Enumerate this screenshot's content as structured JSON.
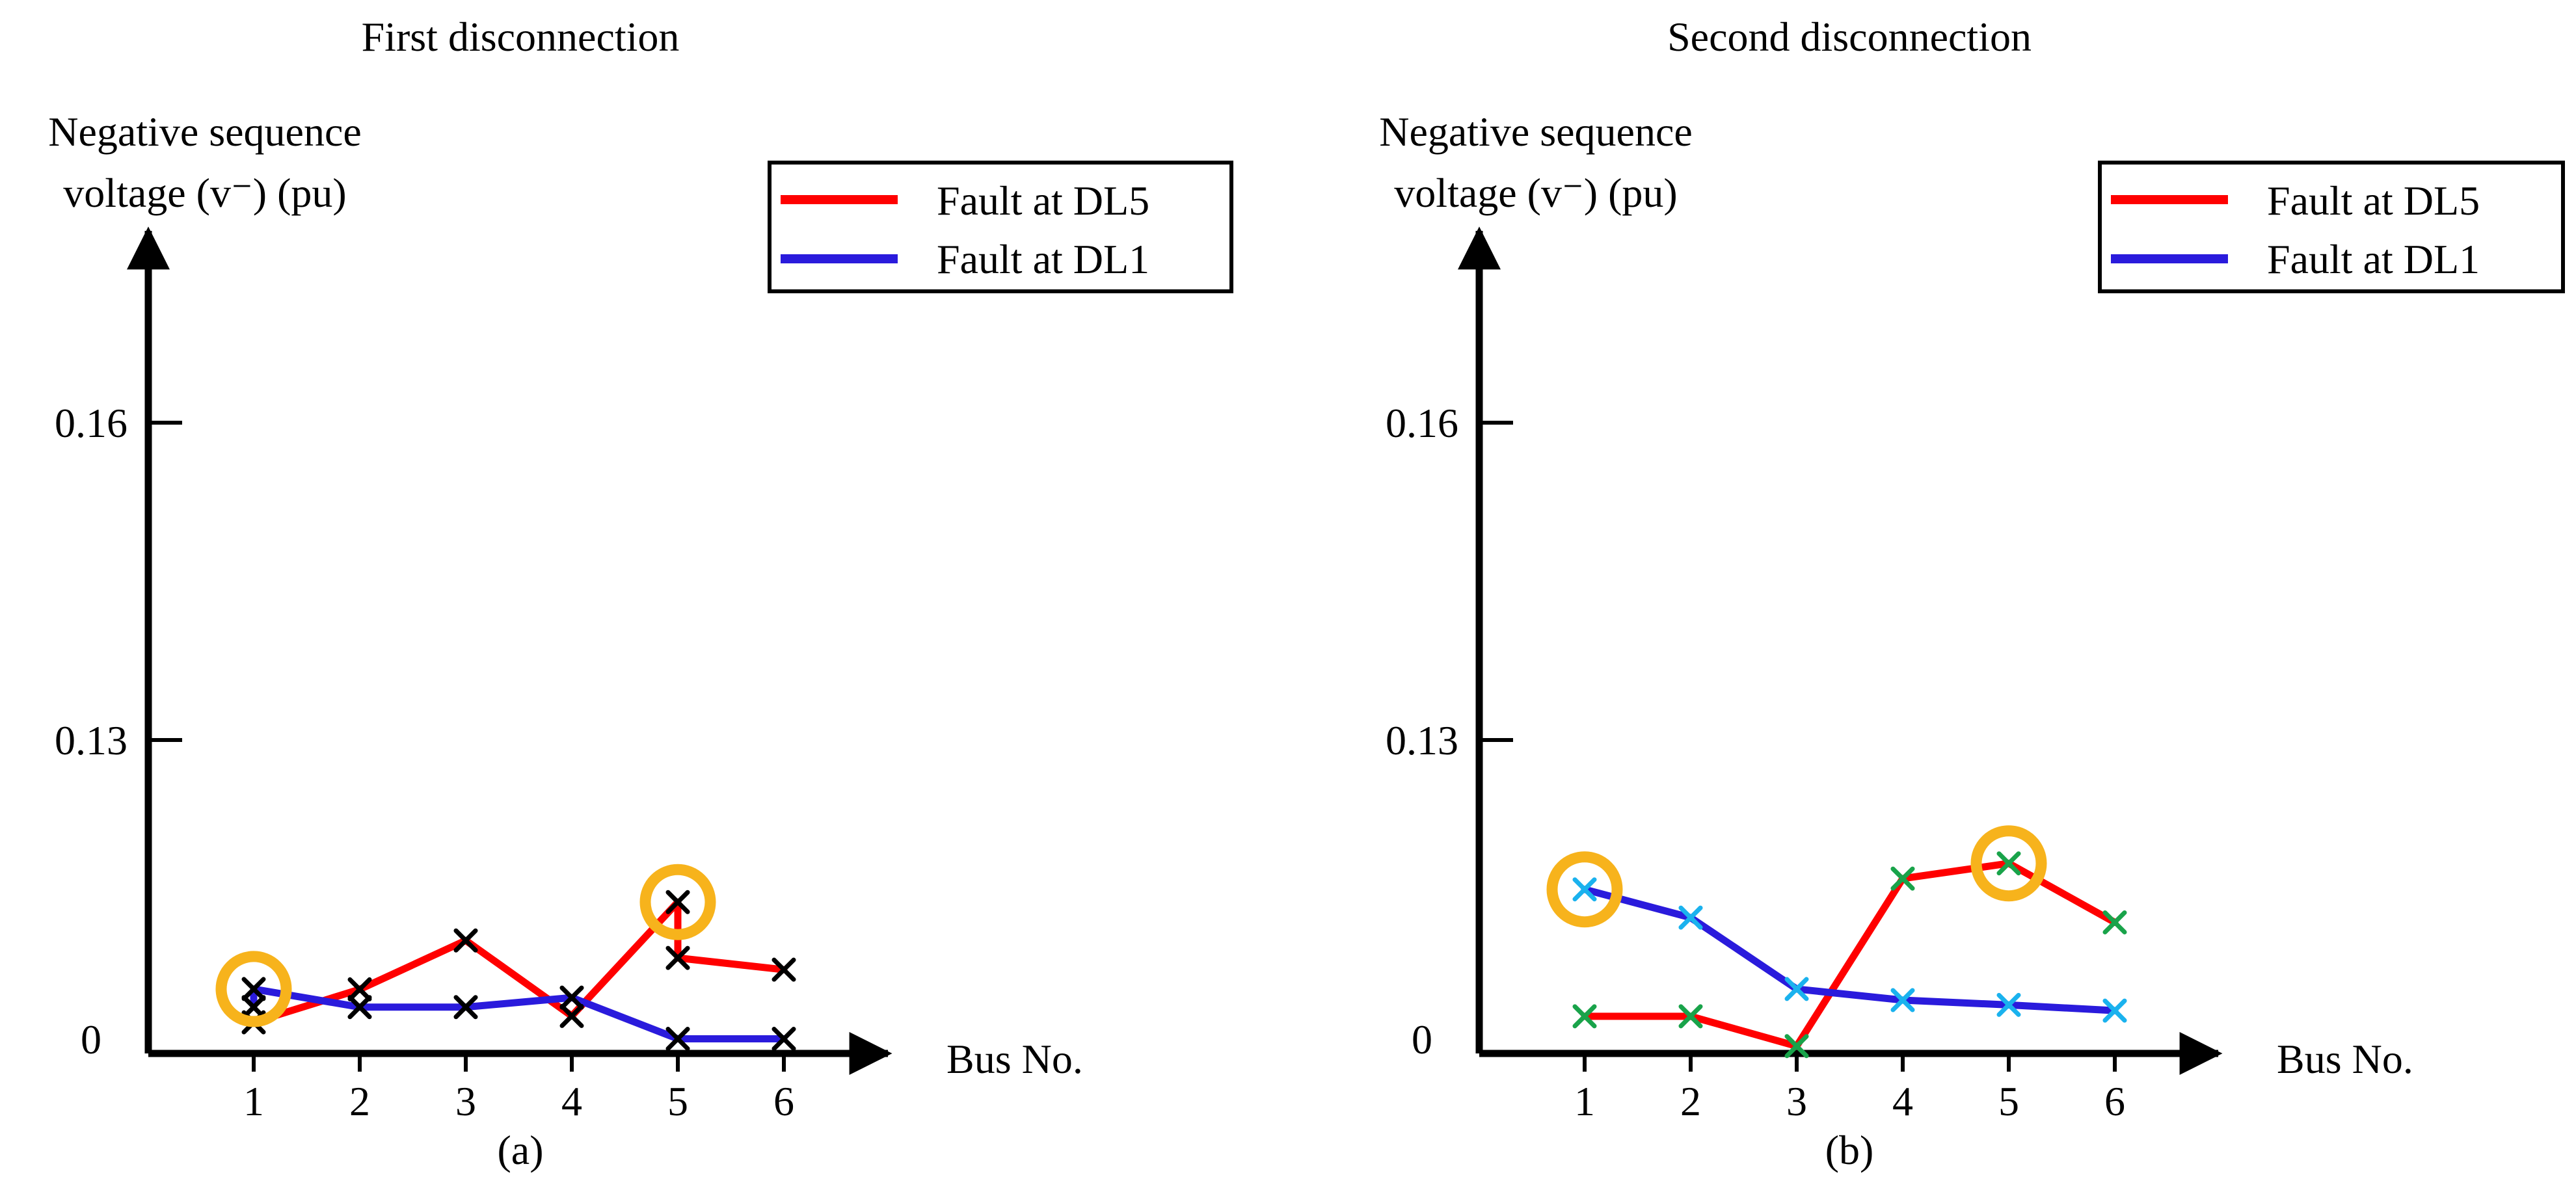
{
  "chart_data": [
    {
      "type": "line",
      "title": "First disconnection",
      "caption": "(a)",
      "ylabel_line1": "Negative sequence",
      "ylabel_line2": "voltage (v⁻) (pu)",
      "xlabel": "Bus No.",
      "x": [
        1,
        2,
        3,
        4,
        5,
        6
      ],
      "x_tick_labels": [
        "1",
        "2",
        "3",
        "4",
        "5",
        "6"
      ],
      "y_tick_labels": [
        "0",
        "0.13",
        "0.16"
      ],
      "y_ticks": [
        0,
        0.13,
        0.16
      ],
      "ylim": [
        0,
        0.1755
      ],
      "legend_position": "top-right",
      "series": [
        {
          "name": "Fault at DL5",
          "color": "#ff0000",
          "points": [
            [
              1,
              0.0098
            ],
            [
              2,
              0.0202
            ],
            [
              3,
              0.0356
            ],
            [
              4,
              0.0118
            ],
            [
              5,
              0.0477
            ],
            [
              5,
              0.0301
            ],
            [
              6,
              0.0264
            ]
          ]
        },
        {
          "name": "Fault at DL1",
          "color": "#2a1bdc",
          "points": [
            [
              1,
              0.0146
            ],
            [
              1,
              0.0203
            ],
            [
              2,
              0.0146
            ],
            [
              3,
              0.0146
            ],
            [
              4,
              0.0176
            ],
            [
              5,
              0.0046
            ],
            [
              6,
              0.0046
            ]
          ]
        }
      ],
      "markers": [
        [
          1,
          0.0203
        ],
        [
          1,
          0.0146
        ],
        [
          1,
          0.0098
        ],
        [
          2,
          0.0202
        ],
        [
          2,
          0.0146
        ],
        [
          3,
          0.0356
        ],
        [
          3,
          0.0146
        ],
        [
          4,
          0.0176
        ],
        [
          4,
          0.0118
        ],
        [
          5,
          0.0477
        ],
        [
          5,
          0.0301
        ],
        [
          5,
          0.0046
        ],
        [
          6,
          0.0264
        ],
        [
          6,
          0.0046
        ]
      ],
      "marker_color": "#000000",
      "highlights": [
        [
          1,
          0.0203
        ],
        [
          5,
          0.0477
        ]
      ],
      "highlight_color": "#f7b31c"
    },
    {
      "type": "line",
      "title": "Second disconnection",
      "caption": "(b)",
      "ylabel_line1": "Negative sequence",
      "ylabel_line2": "voltage (v⁻) (pu)",
      "xlabel": "Bus No.",
      "x": [
        1,
        2,
        3,
        4,
        5,
        6
      ],
      "x_tick_labels": [
        "1",
        "2",
        "3",
        "4",
        "5",
        "6"
      ],
      "y_tick_labels": [
        "0",
        "0.13",
        "0.16"
      ],
      "y_ticks": [
        0,
        0.13,
        0.16
      ],
      "ylim": [
        0,
        0.1755
      ],
      "legend_position": "top-right",
      "series": [
        {
          "name": "Fault at DL5",
          "color": "#ff0000",
          "points": [
            [
              1,
              0.0117
            ],
            [
              2,
              0.0117
            ],
            [
              3,
              0.0023
            ],
            [
              4,
              0.0551
            ],
            [
              5,
              0.0599
            ],
            [
              6,
              0.0413
            ]
          ]
        },
        {
          "name": "Fault at DL1",
          "color": "#2a1bdc",
          "points": [
            [
              1,
              0.0517
            ],
            [
              2,
              0.0428
            ],
            [
              3,
              0.0203
            ],
            [
              4,
              0.0168
            ],
            [
              5,
              0.0153
            ],
            [
              6,
              0.0135
            ]
          ]
        }
      ],
      "marker_colors": [
        "#19a34a",
        "#1ab2ee"
      ],
      "highlights": [
        [
          1,
          0.0517
        ],
        [
          5,
          0.0599
        ]
      ],
      "highlight_color": "#f7b31c"
    }
  ]
}
